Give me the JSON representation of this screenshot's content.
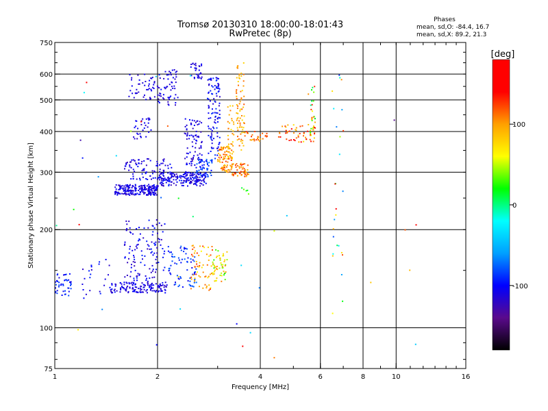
{
  "chart_data": {
    "type": "scatter",
    "title": "Tromsø 20130310 18:00:00-18:01:43",
    "subtitle": "RwPretec (8p)",
    "stats": {
      "heading": "Phases",
      "line1": "mean, sd,O: -84.4, 16.7",
      "line2": "mean, sd,X:  89.2, 21.3"
    },
    "xlabel": "Frequency [MHz]",
    "ylabel": "Stationary phase Virtual Height [km]",
    "x_scale": "log",
    "y_scale": "log",
    "xlim": [
      1,
      16
    ],
    "ylim": [
      75,
      750
    ],
    "x_gridlines": [
      2,
      4,
      6,
      8,
      10
    ],
    "y_gridlines": [
      100,
      200,
      300,
      400,
      500,
      600
    ],
    "x_ticks": [
      {
        "value": 1,
        "label": "1"
      },
      {
        "value": 2,
        "label": "2"
      },
      {
        "value": 4,
        "label": "4"
      },
      {
        "value": 6,
        "label": "6"
      },
      {
        "value": 8,
        "label": "8"
      },
      {
        "value": 10,
        "label": "10"
      },
      {
        "value": 16,
        "label": "16"
      }
    ],
    "y_ticks": [
      {
        "value": 75,
        "label": "75"
      },
      {
        "value": 100,
        "label": "100"
      },
      {
        "value": 200,
        "label": "200"
      },
      {
        "value": 300,
        "label": "300"
      },
      {
        "value": 400,
        "label": "400"
      },
      {
        "value": 500,
        "label": "500"
      },
      {
        "value": 600,
        "label": "600"
      },
      {
        "value": 750,
        "label": "750"
      }
    ],
    "colorbar": {
      "label": "[deg]",
      "range": [
        -180,
        180
      ],
      "ticks": [
        {
          "value": 100,
          "label": "100"
        },
        {
          "value": 0,
          "label": "0"
        },
        {
          "value": -100,
          "label": "-100"
        }
      ],
      "colors": [
        "#000000",
        "#5a0a8c",
        "#0000ff",
        "#00a0ff",
        "#00ffff",
        "#00ff00",
        "#ffff00",
        "#ffa000",
        "#ff0000",
        "#ff0000"
      ]
    },
    "clusters": [
      {
        "x": [
          1.5,
          2.0
        ],
        "y": [
          255,
          275
        ],
        "phase": [
          -125,
          -95
        ],
        "n": 220
      },
      {
        "x": [
          2.0,
          2.8
        ],
        "y": [
          272,
          300
        ],
        "phase": [
          -125,
          -90
        ],
        "n": 170
      },
      {
        "x": [
          1.6,
          2.2
        ],
        "y": [
          285,
          330
        ],
        "phase": [
          -125,
          -95
        ],
        "n": 90
      },
      {
        "x": [
          2.4,
          2.7
        ],
        "y": [
          280,
          440
        ],
        "phase": [
          -125,
          -95
        ],
        "n": 110
      },
      {
        "x": [
          2.0,
          2.3
        ],
        "y": [
          480,
          620
        ],
        "phase": [
          -125,
          -95
        ],
        "n": 60
      },
      {
        "x": [
          1.65,
          2.0
        ],
        "y": [
          500,
          600
        ],
        "phase": [
          -120,
          -100
        ],
        "n": 45
      },
      {
        "x": [
          1.7,
          1.95
        ],
        "y": [
          380,
          440
        ],
        "phase": [
          -120,
          -100
        ],
        "n": 30
      },
      {
        "x": [
          2.5,
          2.7
        ],
        "y": [
          580,
          650
        ],
        "phase": [
          -120,
          -100
        ],
        "n": 30
      },
      {
        "x": [
          2.8,
          3.05
        ],
        "y": [
          330,
          590
        ],
        "phase": [
          -120,
          -85
        ],
        "n": 110
      },
      {
        "x": [
          2.6,
          2.9
        ],
        "y": [
          290,
          330
        ],
        "phase": [
          -100,
          -70
        ],
        "n": 45
      },
      {
        "x": [
          3.0,
          3.3
        ],
        "y": [
          300,
          360
        ],
        "phase": [
          80,
          130
        ],
        "n": 80
      },
      {
        "x": [
          3.3,
          3.7
        ],
        "y": [
          290,
          320
        ],
        "phase": [
          90,
          130
        ],
        "n": 55
      },
      {
        "x": [
          3.4,
          3.6
        ],
        "y": [
          350,
          650
        ],
        "phase": [
          70,
          120
        ],
        "n": 70
      },
      {
        "x": [
          3.2,
          3.35
        ],
        "y": [
          330,
          480
        ],
        "phase": [
          70,
          110
        ],
        "n": 35
      },
      {
        "x": [
          3.5,
          4.2
        ],
        "y": [
          370,
          400
        ],
        "phase": [
          90,
          130
        ],
        "n": 30
      },
      {
        "x": [
          4.5,
          5.8
        ],
        "y": [
          370,
          420
        ],
        "phase": [
          70,
          150
        ],
        "n": 50
      },
      {
        "x": [
          5.6,
          5.8
        ],
        "y": [
          380,
          560
        ],
        "phase": [
          0,
          140
        ],
        "n": 30
      },
      {
        "x": [
          1.6,
          2.1
        ],
        "y": [
          128,
          215
        ],
        "phase": [
          -125,
          -90
        ],
        "n": 150
      },
      {
        "x": [
          1.45,
          2.15
        ],
        "y": [
          128,
          138
        ],
        "phase": [
          -125,
          -95
        ],
        "n": 110
      },
      {
        "x": [
          2.15,
          2.6
        ],
        "y": [
          132,
          180
        ],
        "phase": [
          -110,
          -70
        ],
        "n": 70
      },
      {
        "x": [
          2.5,
          2.9
        ],
        "y": [
          130,
          180
        ],
        "phase": [
          60,
          130
        ],
        "n": 60
      },
      {
        "x": [
          2.9,
          3.2
        ],
        "y": [
          138,
          175
        ],
        "phase": [
          20,
          110
        ],
        "n": 55
      },
      {
        "x": [
          1.0,
          1.12
        ],
        "y": [
          125,
          148
        ],
        "phase": [
          -110,
          -80
        ],
        "n": 45
      },
      {
        "x": [
          1.2,
          1.45
        ],
        "y": [
          120,
          165
        ],
        "phase": [
          -120,
          -90
        ],
        "n": 22
      },
      {
        "x": [
          3.5,
          3.7
        ],
        "y": [
          255,
          275
        ],
        "phase": [
          0,
          40
        ],
        "n": 5
      },
      {
        "x": [
          6.5,
          7.0
        ],
        "y": [
          110,
          600
        ],
        "phase": [
          -100,
          160
        ],
        "n": 25
      },
      {
        "x": [
          1.0,
          12.0
        ],
        "y": [
          80,
          640
        ],
        "phase": [
          -140,
          160
        ],
        "n": 40
      }
    ]
  }
}
